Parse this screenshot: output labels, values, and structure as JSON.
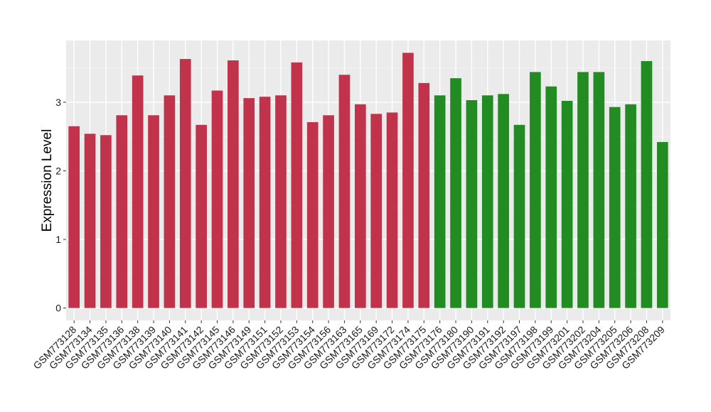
{
  "chart_data": {
    "type": "bar",
    "title": "",
    "xlabel": "",
    "ylabel": "Expression Level",
    "ylim": [
      -0.18,
      3.9
    ],
    "yticks": [
      0,
      1,
      2,
      3
    ],
    "grid": true,
    "background": "#EBEBEB",
    "categories": [
      "GSM773128",
      "GSM773134",
      "GSM773135",
      "GSM773136",
      "GSM773138",
      "GSM773139",
      "GSM773140",
      "GSM773141",
      "GSM773142",
      "GSM773145",
      "GSM773146",
      "GSM773149",
      "GSM773151",
      "GSM773152",
      "GSM773153",
      "GSM773154",
      "GSM773156",
      "GSM773163",
      "GSM773165",
      "GSM773169",
      "GSM773172",
      "GSM773174",
      "GSM773175",
      "GSM773176",
      "GSM773180",
      "GSM773190",
      "GSM773191",
      "GSM773192",
      "GSM773197",
      "GSM773198",
      "GSM773199",
      "GSM773201",
      "GSM773202",
      "GSM773204",
      "GSM773205",
      "GSM773206",
      "GSM773208",
      "GSM773209"
    ],
    "values": [
      2.65,
      2.54,
      2.52,
      2.81,
      3.39,
      2.81,
      3.1,
      3.63,
      2.67,
      3.17,
      3.61,
      3.06,
      3.08,
      3.1,
      3.58,
      2.71,
      2.81,
      3.4,
      2.97,
      2.83,
      2.85,
      3.72,
      3.28,
      3.1,
      3.35,
      3.03,
      3.1,
      3.12,
      2.67,
      3.44,
      3.23,
      3.02,
      3.44,
      3.44,
      2.93,
      2.97,
      3.6,
      2.42
    ],
    "group_sizes": [
      23,
      15
    ],
    "group_colors": [
      "#C0334A",
      "#228B22"
    ]
  }
}
